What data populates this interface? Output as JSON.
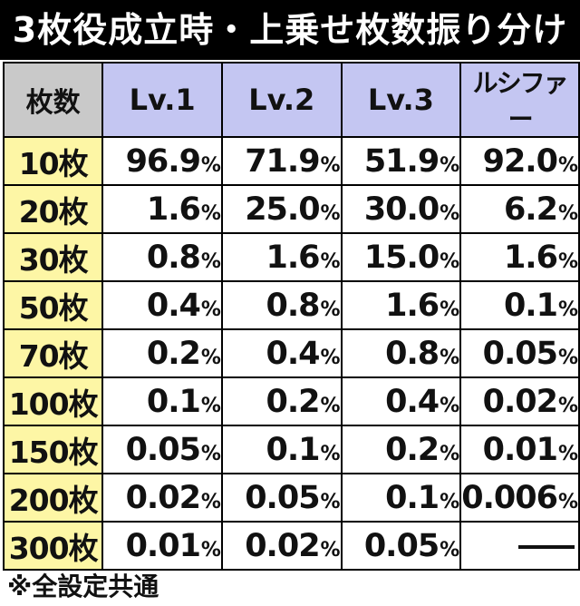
{
  "title": "3枚役成立時・上乗せ枚数振り分け",
  "table": {
    "corner": "枚数",
    "columns": [
      "Lv.1",
      "Lv.2",
      "Lv.3",
      "ルシファー"
    ],
    "percent_sign": "%",
    "rows": [
      {
        "label": "10枚",
        "values": [
          "96.9",
          "71.9",
          "51.9",
          "92.0"
        ]
      },
      {
        "label": "20枚",
        "values": [
          "1.6",
          "25.0",
          "30.0",
          "6.2"
        ]
      },
      {
        "label": "30枚",
        "values": [
          "0.8",
          "1.6",
          "15.0",
          "1.6"
        ]
      },
      {
        "label": "50枚",
        "values": [
          "0.4",
          "0.8",
          "1.6",
          "0.1"
        ]
      },
      {
        "label": "70枚",
        "values": [
          "0.2",
          "0.4",
          "0.8",
          "0.05"
        ]
      },
      {
        "label": "100枚",
        "values": [
          "0.1",
          "0.2",
          "0.4",
          "0.02"
        ]
      },
      {
        "label": "150枚",
        "values": [
          "0.05",
          "0.1",
          "0.2",
          "0.01"
        ]
      },
      {
        "label": "200枚",
        "values": [
          "0.02",
          "0.05",
          "0.1",
          "0.006"
        ]
      },
      {
        "label": "300枚",
        "values": [
          "0.01",
          "0.02",
          "0.05",
          "—"
        ]
      }
    ]
  },
  "footnote": "※全設定共通",
  "colors": {
    "title_bg": "#000000",
    "header_bg": "#c4c6f2",
    "corner_bg": "#c9c9c9",
    "rowhead_bg": "#fdf6a5"
  }
}
